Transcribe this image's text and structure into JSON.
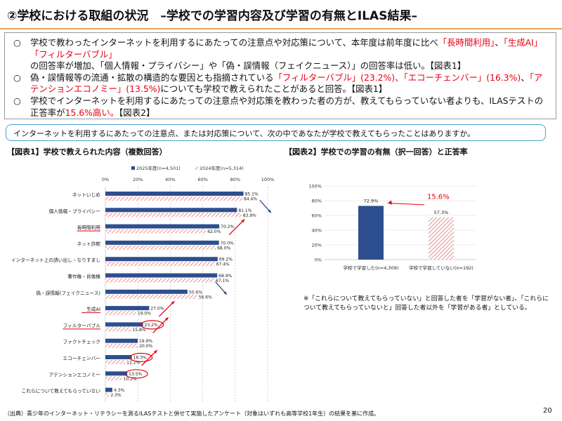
{
  "title": "②学校における取組の状況　–学校での学習内容及び学習の有無とILAS結果–",
  "summary": {
    "bullet": "○",
    "p1_a": "学校で教わったインターネットを利用するにあたっての注意点や対応策について、本年度は前年度に比べ",
    "p1_red1": "「長時間利用」",
    "p1_b": "、",
    "p1_red2": "「生成AI」「フィルターバブル」",
    "p1_c": "の回答率が増加、「個人情報・プライバシー」や「偽・誤情報（フェイクニュース）」の回答率は低い。【図表1】",
    "p2_a": "偽・誤情報等の流通・拡散の構造的な要因とも指摘されている",
    "p2_red1": "「フィルターバブル」(23.2%)、「エコーチェンバー」(16.3%)",
    "p2_b": "、",
    "p2_red2": "「アテンションエコノミー」(13.5%)",
    "p2_c": "についても学校で教えられたことがあると回答。【図表1】",
    "p3_a": "学校でインターネットを利用するにあたっての注意点や対応策を教わった者の方が、教えてもらっていない者よりも、ILASテストの正答率が",
    "p3_red": "15.6%高い。",
    "p3_c": "【図表2】"
  },
  "question": "インターネットを利用するにあたっての注意点、または対応策について、次の中であなたが学校で教えてもらったことはありますか。",
  "colors": {
    "navy": "#2e4f8f",
    "red": "#e60012",
    "hatch": "#e87070",
    "accent": "#e8a05a",
    "box": "#4aa0d8"
  },
  "fig1": {
    "title": "【図表1】学校で教えられた内容（複数回答）",
    "legend_2025": "2025年度(n=4,501)",
    "legend_2024": "2024年度(n=5,314)",
    "x_ticks": [
      "0%",
      "20%",
      "40%",
      "60%",
      "80%",
      "100%"
    ]
  },
  "fig2": {
    "title": "【図表2】学校での学習の有無（択一回答）と正答率",
    "y_ticks": [
      "0%",
      "20%",
      "40%",
      "60%",
      "80%",
      "100%"
    ],
    "diff_label": "15.6%"
  },
  "chart_data": [
    {
      "type": "bar",
      "orientation": "horizontal",
      "categories": [
        "ネットいじめ",
        "個人情報・プライバシー",
        "長時間利用",
        "ネット詐欺",
        "インターネット上の誘い出し・なりすまし",
        "著作権・肖像権",
        "偽・誤情報(フェイクニュース)",
        "生成AI",
        "フィルターバブル",
        "ファクトチェック",
        "エコーチェンバー",
        "アテンションエコノミー",
        "これらについて教えてもらっていない"
      ],
      "series": [
        {
          "name": "2025年度(n=4,501)",
          "values": [
            85.1,
            81.1,
            70.2,
            70.0,
            69.2,
            68.9,
            50.6,
            27.0,
            23.2,
            19.9,
            16.3,
            13.5,
            4.3
          ],
          "labels": [
            "85.1%",
            "81.1%",
            "70.2%",
            "70.0%",
            "69.2%",
            "68.9%",
            "50.6%",
            "27.0%",
            "23.2%",
            "19.9%",
            "16.3%",
            "13.5%",
            "4.3%"
          ]
        },
        {
          "name": "2024年度(n=5,314)",
          "values": [
            84.4,
            83.9,
            62.0,
            68.0,
            67.4,
            67.1,
            56.6,
            19.0,
            15.8,
            20.0,
            12.2,
            10.2,
            2.3
          ],
          "labels": [
            "84.4%",
            "83.9%",
            "62.0%",
            "68.0%",
            "67.4%",
            "67.1%",
            "56.6%",
            "19.0%",
            "15.8%",
            "20.0%",
            "12.2%",
            "10.2%",
            "2.3%"
          ]
        }
      ],
      "xlim": [
        0,
        100
      ],
      "grid": true,
      "legend": "top",
      "underlined_categories": [
        "長時間利用",
        "生成AI",
        "フィルターバブル"
      ],
      "circled_values": [
        "23.2%",
        "16.3%",
        "13.5%"
      ],
      "arrows": [
        {
          "category": "個人情報・プライバシー",
          "direction": "down"
        },
        {
          "category": "長時間利用",
          "direction": "up"
        },
        {
          "category": "偽・誤情報(フェイクニュース)",
          "direction": "down"
        },
        {
          "category": "生成AI",
          "direction": "up"
        },
        {
          "category": "フィルターバブル",
          "direction": "up"
        },
        {
          "category": "エコーチェンバー",
          "direction": "up"
        }
      ]
    },
    {
      "type": "bar",
      "categories": [
        "学校で学習した(n=4,309)",
        "学校で学習していない(n=192)"
      ],
      "values": [
        72.9,
        57.3
      ],
      "labels": [
        "72.9%",
        "57.3%"
      ],
      "ylim": [
        0,
        100
      ],
      "grid": true
    }
  ],
  "note": "※「これらについて教えてもらっていない」と回答した者を「学習がない者」、「これらについて教えてもらっていないと」回答した者以外を「学習がある者」としている。",
  "footer": "（出典）青少年のインターネット・リテラシーを測るILASテストと併せて実施したアンケート（対象はいずれも高等学校1年生）の結果を基に作成。",
  "page_number": "20"
}
